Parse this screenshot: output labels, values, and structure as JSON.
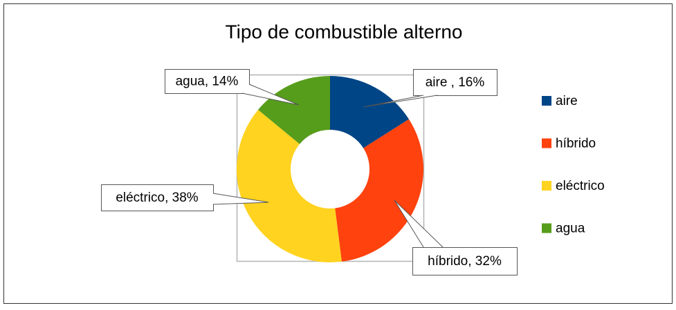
{
  "chart_data": {
    "type": "donut",
    "title": "Tipo de combustible alterno",
    "categories": [
      "aire",
      "híbrido",
      "eléctrico",
      "agua"
    ],
    "values": [
      16,
      32,
      38,
      14
    ],
    "value_labels": [
      "aire , 16%",
      "híbrido, 32%",
      "eléctrico, 38%",
      "agua, 14%"
    ],
    "colors": [
      "#004586",
      "#ff420e",
      "#ffd320",
      "#579d1c"
    ],
    "legend": "right"
  }
}
